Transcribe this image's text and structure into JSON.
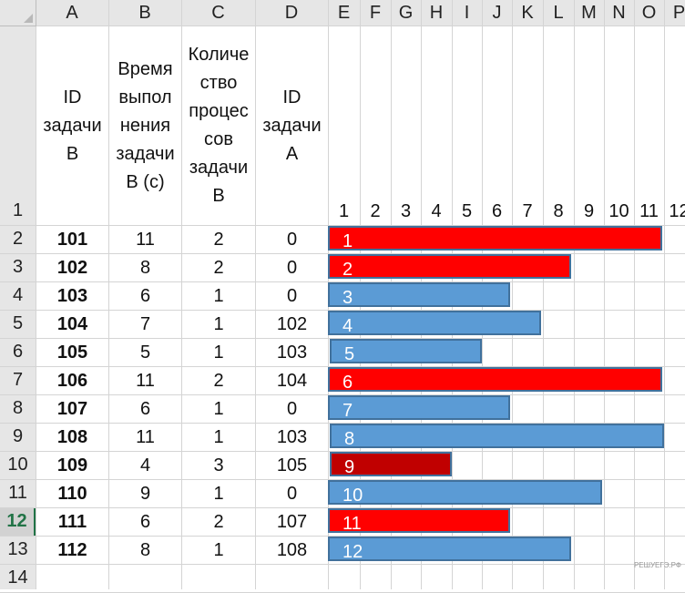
{
  "spreadsheet": {
    "column_headers": [
      "A",
      "B",
      "C",
      "D",
      "E",
      "F",
      "G",
      "H",
      "I",
      "J",
      "K",
      "L",
      "M",
      "N",
      "O",
      "P"
    ],
    "row_numbers": [
      "1",
      "2",
      "3",
      "4",
      "5",
      "6",
      "7",
      "8",
      "9",
      "10",
      "11",
      "12",
      "13",
      "14"
    ],
    "active_row": "12",
    "header_row": {
      "a": "ID\nзадачи\nB",
      "b": "Время\nвыпол\nнения\nзадачи\nB (с)",
      "c": "Количе\nство\nпроцес\nсов\nзадачи\nB",
      "d": "ID\nзадачи\nA"
    },
    "rows": [
      {
        "id": "101",
        "time": "11",
        "procs": "2",
        "dep": "0"
      },
      {
        "id": "102",
        "time": "8",
        "procs": "2",
        "dep": "0"
      },
      {
        "id": "103",
        "time": "6",
        "procs": "1",
        "dep": "0"
      },
      {
        "id": "104",
        "time": "7",
        "procs": "1",
        "dep": "102"
      },
      {
        "id": "105",
        "time": "5",
        "procs": "1",
        "dep": "103"
      },
      {
        "id": "106",
        "time": "11",
        "procs": "2",
        "dep": "104"
      },
      {
        "id": "107",
        "time": "6",
        "procs": "1",
        "dep": "0"
      },
      {
        "id": "108",
        "time": "11",
        "procs": "1",
        "dep": "103"
      },
      {
        "id": "109",
        "time": "4",
        "procs": "3",
        "dep": "105"
      },
      {
        "id": "110",
        "time": "9",
        "procs": "1",
        "dep": "0"
      },
      {
        "id": "111",
        "time": "6",
        "procs": "2",
        "dep": "107"
      },
      {
        "id": "112",
        "time": "8",
        "procs": "1",
        "dep": "108"
      }
    ],
    "watermark": "РЕШУЕГЭ.РФ"
  },
  "chart_data": {
    "type": "bar",
    "orientation": "horizontal",
    "scale_labels": [
      "1",
      "2",
      "3",
      "4",
      "5",
      "6",
      "7",
      "8",
      "9",
      "10",
      "11",
      "12"
    ],
    "bars": [
      {
        "label": "1",
        "value": 11,
        "color": "#ff0000"
      },
      {
        "label": "2",
        "value": 8,
        "color": "#ff0000"
      },
      {
        "label": "3",
        "value": 6,
        "color": "#5b9bd5"
      },
      {
        "label": "4",
        "value": 7,
        "color": "#5b9bd5"
      },
      {
        "label": "5",
        "value": 5,
        "color": "#5b9bd5"
      },
      {
        "label": "6",
        "value": 11,
        "color": "#ff0000"
      },
      {
        "label": "7",
        "value": 6,
        "color": "#5b9bd5"
      },
      {
        "label": "8",
        "value": 11,
        "color": "#5b9bd5"
      },
      {
        "label": "9",
        "value": 4,
        "color": "#c00000"
      },
      {
        "label": "10",
        "value": 9,
        "color": "#5b9bd5"
      },
      {
        "label": "11",
        "value": 6,
        "color": "#ff0000"
      },
      {
        "label": "12",
        "value": 8,
        "color": "#5b9bd5"
      }
    ]
  }
}
